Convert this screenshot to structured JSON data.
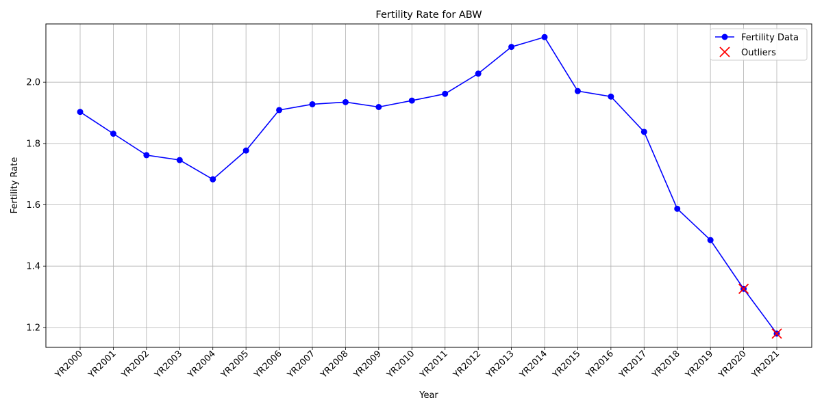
{
  "chart_data": {
    "type": "line",
    "title": "Fertility Rate for ABW",
    "xlabel": "Year",
    "ylabel": "Fertility Rate",
    "categories": [
      "YR2000",
      "YR2001",
      "YR2002",
      "YR2003",
      "YR2004",
      "YR2005",
      "YR2006",
      "YR2007",
      "YR2008",
      "YR2009",
      "YR2010",
      "YR2011",
      "YR2012",
      "YR2013",
      "YR2014",
      "YR2015",
      "YR2016",
      "YR2017",
      "YR2018",
      "YR2019",
      "YR2020",
      "YR2021"
    ],
    "ylim": [
      1.135,
      2.19
    ],
    "yticks": [
      1.2,
      1.4,
      1.6,
      1.8,
      2.0
    ],
    "ytick_labels": [
      "1.2",
      "1.4",
      "1.6",
      "1.8",
      "2.0"
    ],
    "grid": true,
    "legend_position": "top-right",
    "series": [
      {
        "name": "Fertility Data",
        "color": "#0000ff",
        "marker": "circle",
        "values": [
          1.903,
          1.832,
          1.762,
          1.746,
          1.683,
          1.777,
          1.909,
          1.928,
          1.935,
          1.919,
          1.94,
          1.962,
          2.028,
          2.115,
          2.147,
          1.971,
          1.953,
          1.838,
          1.587,
          1.485,
          1.326,
          1.18
        ]
      }
    ],
    "outliers": {
      "name": "Outliers",
      "color": "#ff0000",
      "marker": "x",
      "categories": [
        "YR2020",
        "YR2021"
      ],
      "values": [
        1.326,
        1.18
      ]
    }
  }
}
